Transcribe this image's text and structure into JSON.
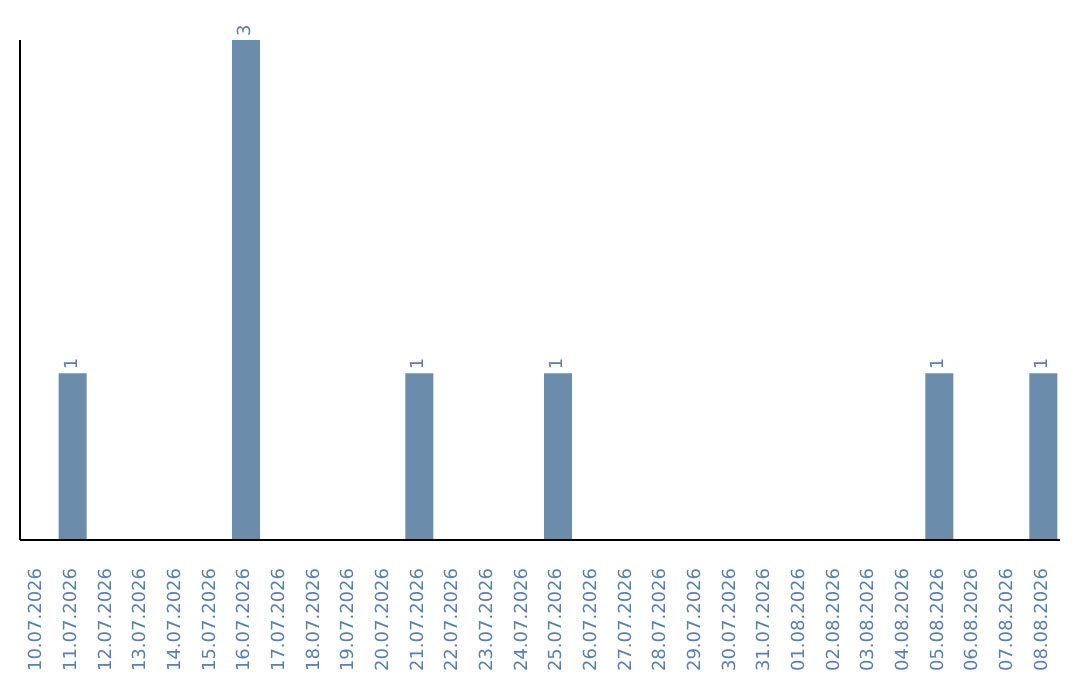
{
  "chart_data": {
    "type": "bar",
    "categories": [
      "10.07.2026",
      "11.07.2026",
      "12.07.2026",
      "13.07.2026",
      "14.07.2026",
      "15.07.2026",
      "16.07.2026",
      "17.07.2026",
      "18.07.2026",
      "19.07.2026",
      "20.07.2026",
      "21.07.2026",
      "22.07.2026",
      "23.07.2026",
      "24.07.2026",
      "25.07.2026",
      "26.07.2026",
      "27.07.2026",
      "28.07.2026",
      "29.07.2026",
      "30.07.2026",
      "31.07.2026",
      "01.08.2026",
      "02.08.2026",
      "03.08.2026",
      "04.08.2026",
      "05.08.2026",
      "06.08.2026",
      "07.08.2026",
      "08.08.2026"
    ],
    "values": [
      0,
      1,
      0,
      0,
      0,
      0,
      3,
      0,
      0,
      0,
      0,
      1,
      0,
      0,
      0,
      1,
      0,
      0,
      0,
      0,
      0,
      0,
      0,
      0,
      0,
      0,
      1,
      0,
      0,
      1
    ],
    "value_labels": [
      null,
      "1",
      null,
      null,
      null,
      null,
      "3",
      null,
      null,
      null,
      null,
      "1",
      null,
      null,
      null,
      "1",
      null,
      null,
      null,
      null,
      null,
      null,
      null,
      null,
      null,
      null,
      "1",
      null,
      null,
      "1"
    ],
    "color": "#6b8cab"
  }
}
